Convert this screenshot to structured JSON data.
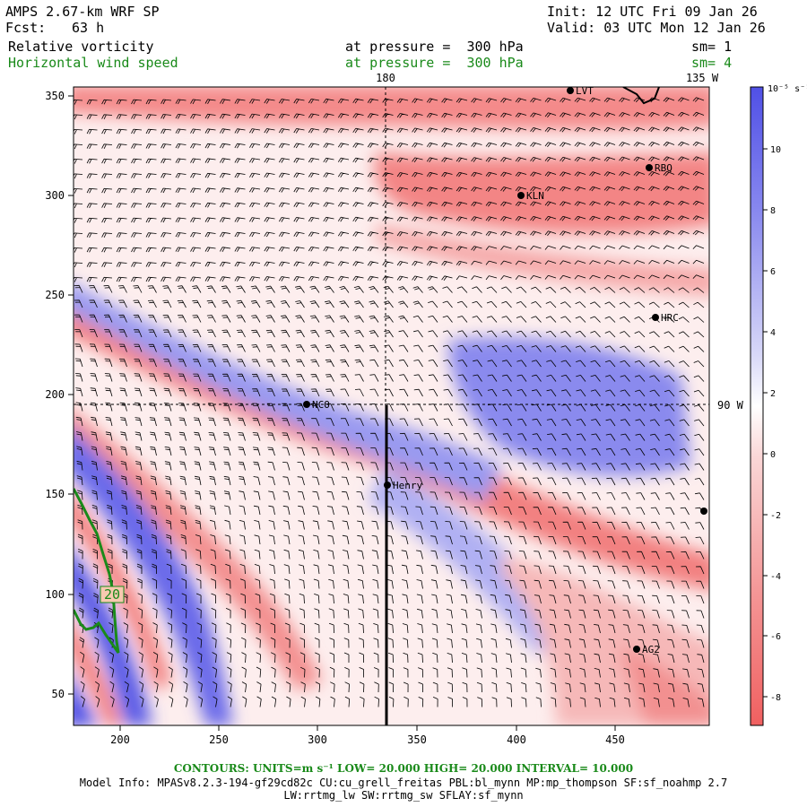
{
  "header": {
    "model": "AMPS 2.67-km WRF SP",
    "fcst_label": "Fcst:",
    "fcst_value": "63 h",
    "init": "Init: 12 UTC Fri 09 Jan 26",
    "valid": "Valid: 03 UTC Mon 12 Jan 26"
  },
  "fields": [
    {
      "name": "Relative vorticity",
      "pressure": "at pressure =  300 hPa",
      "sm": "sm= 1",
      "color": "#000000"
    },
    {
      "name": "Horizontal wind speed",
      "pressure": "at pressure =  300 hPa",
      "sm": "sm= 4",
      "color": "#1a8a1a"
    }
  ],
  "map": {
    "x_ticks": [
      "200",
      "250",
      "300",
      "350",
      "400",
      "450"
    ],
    "y_ticks": [
      "50",
      "100",
      "150",
      "200",
      "250",
      "300",
      "350"
    ],
    "meridian_labels": [
      "180",
      "135 W"
    ],
    "parallel_label": "90 W",
    "stations": [
      {
        "name": "LVT"
      },
      {
        "name": "RBQ"
      },
      {
        "name": "KLN"
      },
      {
        "name": "HRC"
      },
      {
        "name": "NCO"
      },
      {
        "name": "Henry"
      },
      {
        "name": "AG2"
      }
    ],
    "contour_label": "20",
    "colors": {
      "positive": "#5a5ae6",
      "negative": "#f06a6a",
      "contour": "#1a8a1a"
    }
  },
  "colorbar": {
    "unit_label": "10⁻⁵ s⁻¹",
    "ticks": [
      "10",
      "8",
      "6",
      "4",
      "2",
      "0",
      "-2",
      "-4",
      "-6",
      "-8"
    ]
  },
  "footer": {
    "contours": "CONTOURS:  UNITS=m s⁻¹  LOW=  20.000      HIGH=  20.000      INTERVAL=   10.000",
    "model_info": "Model Info: MPASv8.2.3-194-gf29cd82c CU:cu_grell_freitas PBL:bl_mynn MP:mp_thompson SF:sf_noahmp 2.7",
    "model_info2": "LW:rrtmg_lw SW:rrtmg_sw SFLAY:sf_mynn"
  }
}
